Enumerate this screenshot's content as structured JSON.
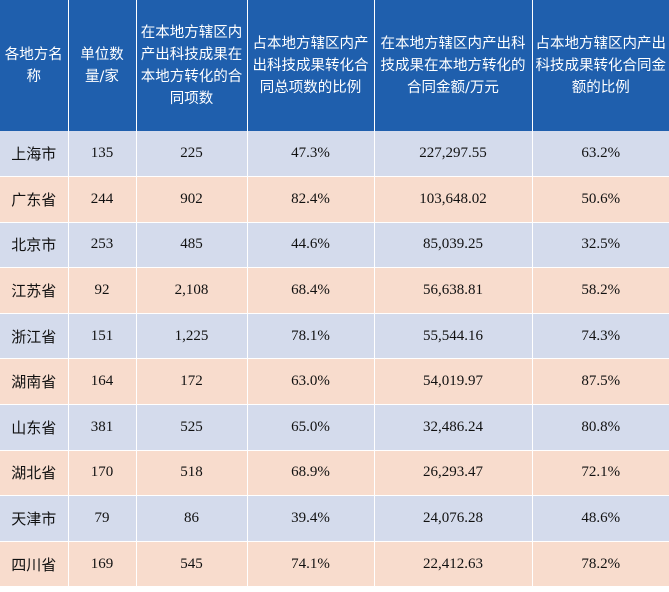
{
  "table": {
    "headers": [
      "各地方名称",
      "单位数量/家",
      "在本地方辖区内产出科技成果在本地方转化的合同项数",
      "占本地方辖区内产出科技成果转化合同总项数的比例",
      "在本地方辖区内产出科技成果在本地方转化的合同金额/万元",
      "占本地方辖区内产出科技成果转化合同金额的比例"
    ],
    "rows": [
      [
        "上海市",
        "135",
        "225",
        "47.3%",
        "227,297.55",
        "63.2%"
      ],
      [
        "广东省",
        "244",
        "902",
        "82.4%",
        "103,648.02",
        "50.6%"
      ],
      [
        "北京市",
        "253",
        "485",
        "44.6%",
        "85,039.25",
        "32.5%"
      ],
      [
        "江苏省",
        "92",
        "2,108",
        "68.4%",
        "56,638.81",
        "58.2%"
      ],
      [
        "浙江省",
        "151",
        "1,225",
        "78.1%",
        "55,544.16",
        "74.3%"
      ],
      [
        "湖南省",
        "164",
        "172",
        "63.0%",
        "54,019.97",
        "87.5%"
      ],
      [
        "山东省",
        "381",
        "525",
        "65.0%",
        "32,486.24",
        "80.8%"
      ],
      [
        "湖北省",
        "170",
        "518",
        "68.9%",
        "26,293.47",
        "72.1%"
      ],
      [
        "天津市",
        "79",
        "86",
        "39.4%",
        "24,076.28",
        "48.6%"
      ],
      [
        "四川省",
        "169",
        "545",
        "74.1%",
        "22,412.63",
        "78.2%"
      ]
    ]
  },
  "colors": {
    "header_bg": "#1f5fad",
    "row_blue": "#d4dbec",
    "row_peach": "#f8dccd"
  }
}
